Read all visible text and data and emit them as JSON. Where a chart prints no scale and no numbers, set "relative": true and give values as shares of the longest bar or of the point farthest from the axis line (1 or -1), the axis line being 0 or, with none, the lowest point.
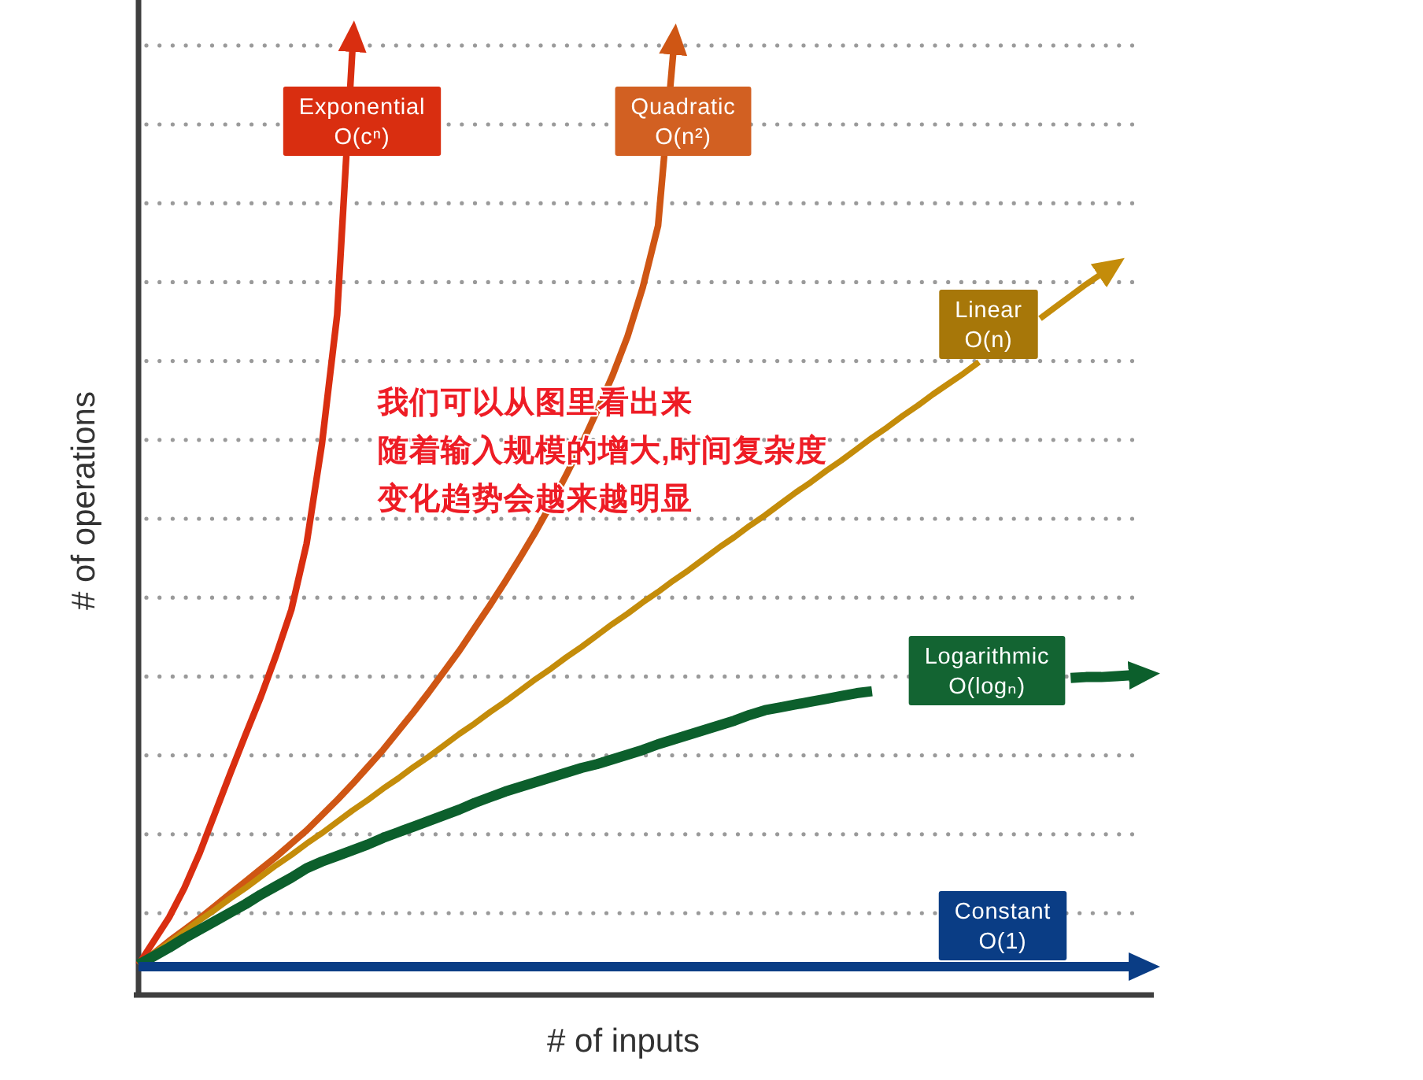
{
  "chart_data": {
    "type": "line",
    "relative": true,
    "xlabel": "# of inputs",
    "ylabel": "# of operations",
    "grid": "y",
    "annotations": [
      "我们可以从图里看出来",
      "随着输入规模的增大,时间复杂度",
      "变化趋势会越来越明显"
    ],
    "categories": [
      null,
      null,
      null,
      null,
      null,
      null,
      null,
      null,
      null,
      null,
      null,
      null,
      null,
      null,
      null,
      null,
      null,
      null,
      null,
      null,
      null,
      null,
      null,
      null,
      null,
      null,
      null,
      null,
      null,
      null,
      null,
      null,
      null,
      null,
      null,
      null,
      null,
      null,
      null,
      null,
      null,
      null,
      null,
      null,
      null,
      null,
      null,
      null,
      null,
      null,
      null,
      null,
      null,
      null,
      null,
      null,
      null,
      null,
      null,
      null,
      null,
      null,
      null,
      null,
      null,
      null
    ],
    "series": [
      {
        "name": "Exponential\nO(cⁿ)",
        "color": "#d92e10",
        "values": [
          0.032,
          0.057,
          0.082,
          0.113,
          0.15,
          0.192,
          0.234,
          0.275,
          0.315,
          0.359,
          0.407,
          0.477,
          0.582,
          0.719,
          1.0,
          null,
          null,
          null,
          null,
          null,
          null,
          null,
          null,
          null,
          null,
          null,
          null,
          null,
          null,
          null,
          null,
          null,
          null,
          null,
          null,
          null,
          null,
          null,
          null,
          null,
          null,
          null,
          null,
          null,
          null,
          null,
          null,
          null,
          null,
          null,
          null,
          null,
          null,
          null,
          null,
          null,
          null,
          null,
          null,
          null,
          null,
          null,
          null,
          null,
          null,
          null
        ]
      },
      {
        "name": "Quadratic\nO(n²)",
        "color": "#cf5614",
        "values": [
          0.032,
          0.044,
          0.057,
          0.069,
          0.081,
          0.094,
          0.107,
          0.12,
          0.133,
          0.146,
          0.16,
          0.174,
          0.19,
          0.206,
          0.223,
          0.241,
          0.259,
          0.279,
          0.299,
          0.32,
          0.342,
          0.364,
          0.388,
          0.412,
          0.437,
          0.463,
          0.49,
          0.519,
          0.55,
          0.582,
          0.617,
          0.654,
          0.696,
          0.748,
          0.813,
          0.997,
          null,
          null,
          null,
          null,
          null,
          null,
          null,
          null,
          null,
          null,
          null,
          null,
          null,
          null,
          null,
          null,
          null,
          null,
          null,
          null,
          null,
          null,
          null,
          null,
          null,
          null,
          null,
          null,
          null,
          null
        ]
      },
      {
        "name": "Linear\nO(n)",
        "color": "#c48c0a",
        "values": [
          0.032,
          0.044,
          0.055,
          0.067,
          0.079,
          0.09,
          0.102,
          0.113,
          0.125,
          0.137,
          0.148,
          0.16,
          0.171,
          0.183,
          0.195,
          0.206,
          0.218,
          0.229,
          0.241,
          0.252,
          0.264,
          0.276,
          0.287,
          0.299,
          0.31,
          0.322,
          0.334,
          0.345,
          0.357,
          0.368,
          0.38,
          0.392,
          0.403,
          0.415,
          0.426,
          0.438,
          0.449,
          0.461,
          0.473,
          0.484,
          0.496,
          0.507,
          0.519,
          0.531,
          0.542,
          0.554,
          0.565,
          0.577,
          0.589,
          0.6,
          0.612,
          0.623,
          0.635,
          0.646,
          0.657,
          0.669,
          null,
          null,
          null,
          0.715,
          0.727,
          0.739,
          0.751,
          0.762,
          null,
          null
        ]
      },
      {
        "name": "Logarithmic\nO(logₙ)",
        "color": "#0c5f2c",
        "values": [
          0.032,
          0.041,
          0.05,
          0.06,
          0.069,
          0.078,
          0.087,
          0.096,
          0.106,
          0.115,
          0.124,
          0.134,
          0.141,
          0.147,
          0.153,
          0.159,
          0.166,
          0.172,
          0.178,
          0.184,
          0.19,
          0.196,
          0.203,
          0.209,
          0.215,
          0.22,
          0.225,
          0.23,
          0.235,
          0.24,
          0.244,
          0.249,
          0.254,
          0.259,
          0.265,
          0.27,
          0.275,
          0.28,
          0.285,
          0.29,
          0.296,
          0.301,
          0.304,
          0.307,
          0.31,
          0.313,
          0.316,
          0.319,
          0.321,
          null,
          null,
          null,
          null,
          null,
          null,
          null,
          null,
          null,
          null,
          null,
          null,
          0.335,
          0.336,
          0.336,
          0.337,
          0.338
        ]
      },
      {
        "name": "Constant\nO(1)",
        "color": "#0a3d85",
        "values": [
          0.03,
          0.03,
          0.03,
          0.03,
          0.03,
          0.03,
          0.03,
          0.03,
          0.03,
          0.03,
          0.03,
          0.03,
          0.03,
          0.03,
          0.03,
          0.03,
          0.03,
          0.03,
          0.03,
          0.03,
          0.03,
          0.03,
          0.03,
          0.03,
          0.03,
          0.03,
          0.03,
          0.03,
          0.03,
          0.03,
          0.03,
          0.03,
          0.03,
          0.03,
          0.03,
          0.03,
          0.03,
          0.03,
          0.03,
          0.03,
          0.03,
          0.03,
          0.03,
          0.03,
          0.03,
          0.03,
          0.03,
          0.03,
          0.03,
          0.03,
          0.03,
          0.03,
          0.03,
          0.03,
          0.03,
          0.03,
          0.03,
          0.03,
          0.03,
          0.03,
          0.03,
          0.03,
          0.03,
          0.03,
          0.03,
          0.03
        ]
      }
    ]
  }
}
